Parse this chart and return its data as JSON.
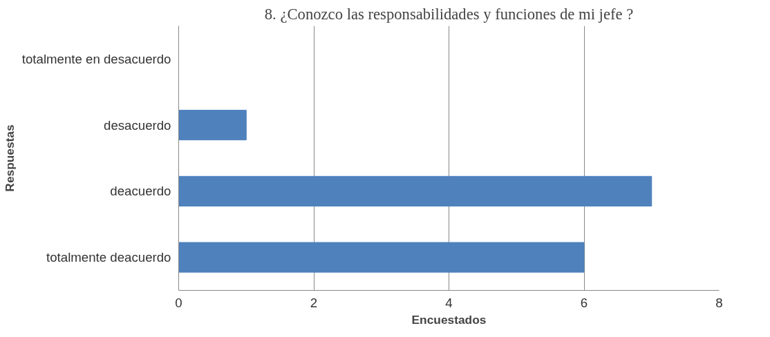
{
  "chart_data": {
    "type": "bar",
    "orientation": "horizontal",
    "title": "8. ¿Conozco las responsabilidades y funciones de mi jefe ?",
    "xlabel": "Encuestados",
    "ylabel": "Respuestas",
    "categories": [
      "totalmente en desacuerdo",
      "desacuerdo",
      "deacuerdo",
      "totalmente deacuerdo"
    ],
    "values": [
      0,
      1,
      7,
      6
    ],
    "color": "#4f81bd",
    "xlim": [
      0,
      8
    ],
    "xticks": [
      0,
      2,
      4,
      6,
      8
    ],
    "grid": "x"
  }
}
